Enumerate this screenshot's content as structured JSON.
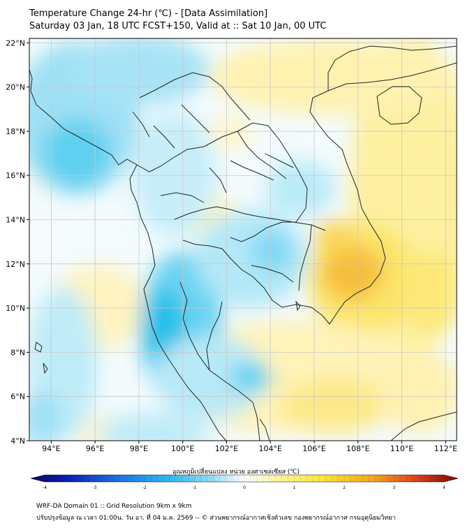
{
  "header": {
    "title": "Temperature Change 24-hr (℃) - [Data Assimilation]",
    "subtitle": "Saturday 03 Jan, 18 UTC FCST+150, Valid at :: Sat 10 Jan, 00 UTC"
  },
  "map": {
    "x_ticks": [
      "94°E",
      "96°E",
      "98°E",
      "100°E",
      "102°E",
      "104°E",
      "106°E",
      "108°E",
      "110°E",
      "112°E"
    ],
    "y_ticks": [
      "22°N",
      "20°N",
      "18°N",
      "16°N",
      "14°N",
      "12°N",
      "10°N",
      "8°N",
      "6°N",
      "4°N"
    ],
    "extent": {
      "lon_min": 93,
      "lon_max": 112.5,
      "lat_min": 4,
      "lat_max": 22.2
    },
    "colors": {
      "cold": "#29c5ec",
      "neutral": "#ffffff",
      "warm": "#fbe53a",
      "hot": "#f4a81f",
      "border": "#222222",
      "grid": "#c8c8c8"
    }
  },
  "colorbar": {
    "title": "อุณหภูมิเปลี่ยนแปลง หน่วย องศาเซลเซียส (℃)",
    "ticks": [
      "-4",
      "-3",
      "-2",
      "-1",
      "0",
      "1",
      "2",
      "3",
      "4"
    ],
    "min": -4,
    "max": 4
  },
  "footer": {
    "line1": "WRF-DA Domain 01 :: Grid Resolution 9km x 9km",
    "line2": "ปรับปรุงข้อมูล ณ เวลา 01:00น. วัน อา. ที่ 04 ม.ค. 2569 -- © ส่วนพยากรณ์อากาศเชิงตัวเลข กองพยากรณ์อากาศ กรมอุตุนิยมวิทยา"
  }
}
